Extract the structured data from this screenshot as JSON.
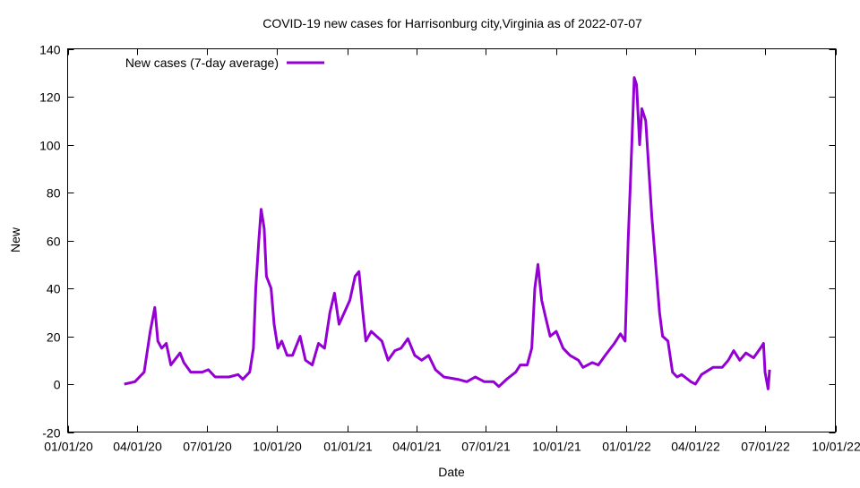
{
  "chart_data": {
    "type": "line",
    "title": "COVID-19 new cases for Harrisonburg city,Virginia as of 2022-07-07",
    "xlabel": "Date",
    "ylabel": "New",
    "ylim": [
      -20,
      140
    ],
    "yticks": [
      -20,
      0,
      20,
      40,
      60,
      80,
      100,
      120,
      140
    ],
    "xlim": [
      "2020-01-01",
      "2022-10-01"
    ],
    "xticks": [
      {
        "date": "2020-01-01",
        "label": "01/01/20"
      },
      {
        "date": "2020-04-01",
        "label": "04/01/20"
      },
      {
        "date": "2020-07-01",
        "label": "07/01/20"
      },
      {
        "date": "2020-10-01",
        "label": "10/01/20"
      },
      {
        "date": "2021-01-01",
        "label": "01/01/21"
      },
      {
        "date": "2021-04-01",
        "label": "04/01/21"
      },
      {
        "date": "2021-07-01",
        "label": "07/01/21"
      },
      {
        "date": "2021-10-01",
        "label": "10/01/21"
      },
      {
        "date": "2022-01-01",
        "label": "01/01/22"
      },
      {
        "date": "2022-04-01",
        "label": "04/01/22"
      },
      {
        "date": "2022-07-01",
        "label": "07/01/22"
      },
      {
        "date": "2022-10-01",
        "label": "10/01/22"
      }
    ],
    "grid": false,
    "legend_position": "top-left",
    "series": [
      {
        "name": "New cases (7-day average)",
        "color": "#9400d3",
        "x": [
          "2020-03-15",
          "2020-03-29",
          "2020-04-10",
          "2020-04-18",
          "2020-04-24",
          "2020-04-28",
          "2020-05-03",
          "2020-05-09",
          "2020-05-15",
          "2020-05-27",
          "2020-06-01",
          "2020-06-10",
          "2020-06-25",
          "2020-07-03",
          "2020-07-12",
          "2020-07-30",
          "2020-08-11",
          "2020-08-17",
          "2020-08-26",
          "2020-08-31",
          "2020-09-03",
          "2020-09-07",
          "2020-09-10",
          "2020-09-14",
          "2020-09-17",
          "2020-09-23",
          "2020-09-27",
          "2020-10-02",
          "2020-10-07",
          "2020-10-14",
          "2020-10-21",
          "2020-10-31",
          "2020-11-07",
          "2020-11-16",
          "2020-11-24",
          "2020-12-02",
          "2020-12-09",
          "2020-12-15",
          "2020-12-21",
          "2020-12-28",
          "2021-01-04",
          "2021-01-11",
          "2021-01-16",
          "2021-01-21",
          "2021-01-25",
          "2021-02-01",
          "2021-02-08",
          "2021-02-15",
          "2021-02-23",
          "2021-03-04",
          "2021-03-12",
          "2021-03-21",
          "2021-03-30",
          "2021-04-08",
          "2021-04-17",
          "2021-04-26",
          "2021-05-07",
          "2021-05-25",
          "2021-06-06",
          "2021-06-17",
          "2021-06-29",
          "2021-07-11",
          "2021-07-18",
          "2021-07-28",
          "2021-08-09",
          "2021-08-15",
          "2021-08-24",
          "2021-08-30",
          "2021-09-03",
          "2021-09-07",
          "2021-09-12",
          "2021-09-17",
          "2021-09-23",
          "2021-10-01",
          "2021-10-10",
          "2021-10-19",
          "2021-10-30",
          "2021-11-05",
          "2021-11-17",
          "2021-11-25",
          "2021-12-04",
          "2021-12-16",
          "2021-12-24",
          "2021-12-30",
          "2022-01-03",
          "2022-01-06",
          "2022-01-11",
          "2022-01-14",
          "2022-01-18",
          "2022-01-21",
          "2022-01-26",
          "2022-01-30",
          "2022-02-03",
          "2022-02-08",
          "2022-02-13",
          "2022-02-17",
          "2022-02-24",
          "2022-03-02",
          "2022-03-08",
          "2022-03-14",
          "2022-03-26",
          "2022-04-01",
          "2022-04-09",
          "2022-04-24",
          "2022-05-06",
          "2022-05-14",
          "2022-05-21",
          "2022-05-29",
          "2022-06-06",
          "2022-06-16",
          "2022-06-25",
          "2022-06-29",
          "2022-07-01",
          "2022-07-05",
          "2022-07-07"
        ],
        "values": [
          0,
          1,
          5,
          22,
          32,
          18,
          15,
          17,
          8,
          13,
          9,
          5,
          5,
          6,
          3,
          3,
          4,
          2,
          5,
          15,
          40,
          60,
          73,
          65,
          45,
          40,
          25,
          15,
          18,
          12,
          12,
          20,
          10,
          8,
          17,
          15,
          30,
          38,
          25,
          30,
          35,
          45,
          47,
          30,
          18,
          22,
          20,
          18,
          10,
          14,
          15,
          19,
          12,
          10,
          12,
          6,
          3,
          2,
          1,
          3,
          1,
          1,
          -1,
          2,
          5,
          8,
          8,
          15,
          40,
          50,
          35,
          28,
          20,
          22,
          15,
          12,
          10,
          7,
          9,
          8,
          12,
          17,
          21,
          18,
          60,
          84,
          128,
          125,
          100,
          115,
          110,
          90,
          70,
          50,
          30,
          20,
          18,
          5,
          3,
          4,
          1,
          0,
          4,
          7,
          7,
          10,
          14,
          10,
          13,
          11,
          15,
          17,
          5,
          -2,
          6
        ]
      }
    ]
  }
}
